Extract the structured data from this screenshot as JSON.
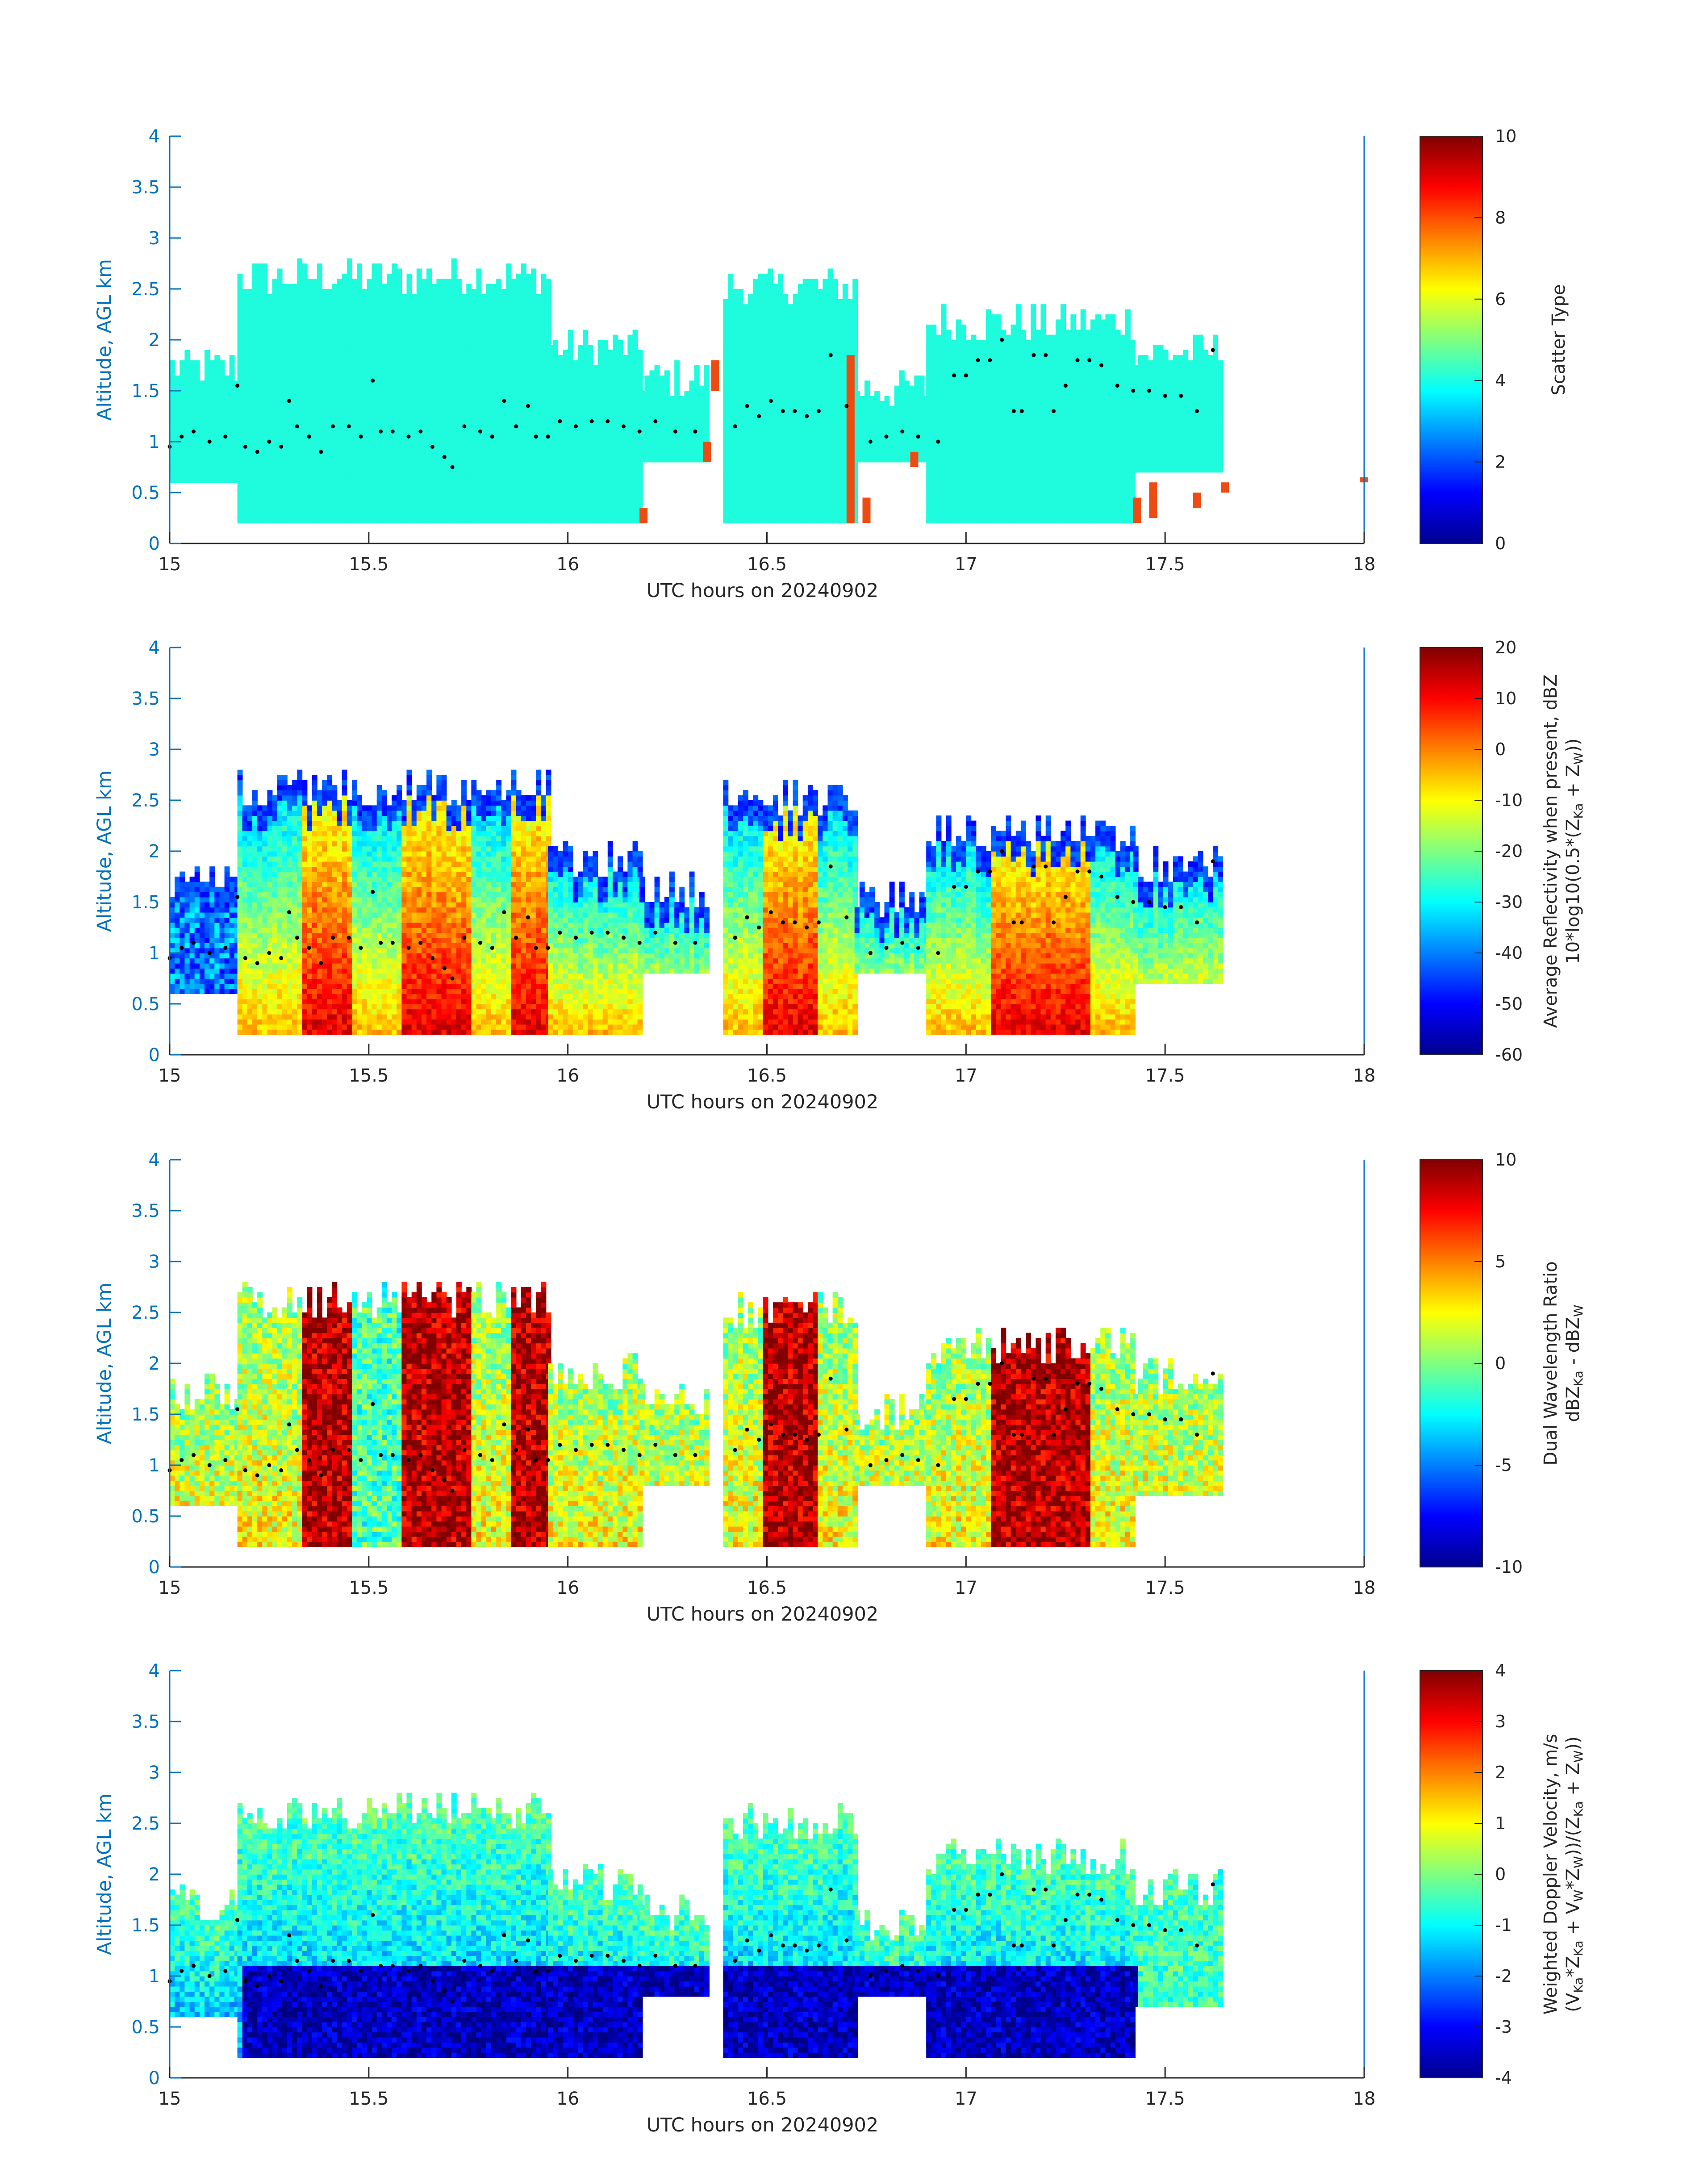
{
  "colors": {
    "axis_y": "#0072BD",
    "axis_x": "#262626",
    "colormap": "jet",
    "altitude_dots": "#000000",
    "scatter_fill": "#1FFBDD",
    "scatter_other": "#EE4B12"
  },
  "chart_data": [
    {
      "type": "heatmap",
      "panel": "scatter-type",
      "ylabel": "Altitude, AGL km",
      "xlabel": "UTC hours on 20240902",
      "xlim": [
        15,
        18
      ],
      "ylim": [
        0,
        4
      ],
      "xticks": [
        "15",
        "15.5",
        "16",
        "16.5",
        "17",
        "17.5",
        "18"
      ],
      "yticks": [
        "0",
        "0.5",
        "1",
        "1.5",
        "2",
        "2.5",
        "3",
        "3.5",
        "4"
      ],
      "colorbar": {
        "label": [
          "Scatter Type"
        ],
        "clim": [
          0,
          10
        ],
        "ticks": [
          "0",
          "2",
          "4",
          "6",
          "8",
          "10"
        ]
      },
      "dominant_value": 4,
      "secondary_value": 8.5
    },
    {
      "type": "heatmap",
      "panel": "average-reflectivity",
      "ylabel": "Altitude, AGL km",
      "xlabel": "UTC hours on 20240902",
      "xlim": [
        15,
        18
      ],
      "ylim": [
        0,
        4
      ],
      "xticks": [
        "15",
        "15.5",
        "16",
        "16.5",
        "17",
        "17.5",
        "18"
      ],
      "yticks": [
        "0",
        "0.5",
        "1",
        "1.5",
        "2",
        "2.5",
        "3",
        "3.5",
        "4"
      ],
      "colorbar": {
        "label": [
          "Average Reflectivity when present, dBZ",
          "10*log10(0.5*(Z",
          "Ka",
          " + Z",
          "W",
          "))"
        ],
        "clim": [
          -60,
          20
        ],
        "ticks": [
          "-60",
          "-50",
          "-40",
          "-30",
          "-20",
          "-10",
          "0",
          "10",
          "20"
        ]
      }
    },
    {
      "type": "heatmap",
      "panel": "dual-wavelength-ratio",
      "ylabel": "Altitude, AGL km",
      "xlabel": "UTC hours on 20240902",
      "xlim": [
        15,
        18
      ],
      "ylim": [
        0,
        4
      ],
      "xticks": [
        "15",
        "15.5",
        "16",
        "16.5",
        "17",
        "17.5",
        "18"
      ],
      "yticks": [
        "0",
        "0.5",
        "1",
        "1.5",
        "2",
        "2.5",
        "3",
        "3.5",
        "4"
      ],
      "colorbar": {
        "label": [
          "Dual Wavelength Ratio",
          "dBZ",
          "Ka",
          " - dBZ",
          "W"
        ],
        "clim": [
          -10,
          10
        ],
        "ticks": [
          "-10",
          "-5",
          "0",
          "5",
          "10"
        ]
      }
    },
    {
      "type": "heatmap",
      "panel": "weighted-doppler-velocity",
      "ylabel": "Altitude, AGL km",
      "xlabel": "UTC hours on 20240902",
      "xlim": [
        15,
        18
      ],
      "ylim": [
        0,
        4
      ],
      "xticks": [
        "15",
        "15.5",
        "16",
        "16.5",
        "17",
        "17.5",
        "18"
      ],
      "yticks": [
        "0",
        "0.5",
        "1",
        "1.5",
        "2",
        "2.5",
        "3",
        "3.5",
        "4"
      ],
      "colorbar": {
        "label": [
          "Weighted Doppler Velocity, m/s",
          "(V",
          "Ka",
          "*Z",
          "Ka",
          " + V",
          "W",
          "*Z",
          "W",
          "))/(Z",
          "Ka",
          " + Z",
          "W",
          "))"
        ],
        "clim": [
          -4,
          4
        ],
        "ticks": [
          "-4",
          "-3",
          "-2",
          "-1",
          "0",
          "1",
          "2",
          "3",
          "4"
        ]
      }
    }
  ],
  "echo_regions": [
    {
      "x0": 15.0,
      "x1": 15.17,
      "bottom": 0.6,
      "top": 1.7
    },
    {
      "x0": 15.17,
      "x1": 15.95,
      "bottom": 0.2,
      "top": 2.6
    },
    {
      "x0": 15.95,
      "x1": 16.18,
      "bottom": 0.2,
      "top": 1.9
    },
    {
      "x0": 16.18,
      "x1": 16.35,
      "bottom": 0.8,
      "top": 1.6
    },
    {
      "x0": 16.39,
      "x1": 16.72,
      "bottom": 0.2,
      "top": 2.5
    },
    {
      "x0": 16.72,
      "x1": 16.9,
      "bottom": 0.8,
      "top": 1.5
    },
    {
      "x0": 16.9,
      "x1": 17.42,
      "bottom": 0.2,
      "top": 2.15
    },
    {
      "x0": 17.42,
      "x1": 17.64,
      "bottom": 0.7,
      "top": 1.85
    }
  ],
  "altitude_dots": [
    [
      15.0,
      0.95
    ],
    [
      15.03,
      1.05
    ],
    [
      15.06,
      1.1
    ],
    [
      15.1,
      1.0
    ],
    [
      15.14,
      1.05
    ],
    [
      15.17,
      1.55
    ],
    [
      15.19,
      0.95
    ],
    [
      15.22,
      0.9
    ],
    [
      15.25,
      1.0
    ],
    [
      15.28,
      0.95
    ],
    [
      15.3,
      1.4
    ],
    [
      15.32,
      1.15
    ],
    [
      15.35,
      1.05
    ],
    [
      15.38,
      0.9
    ],
    [
      15.41,
      1.15
    ],
    [
      15.45,
      1.15
    ],
    [
      15.48,
      1.05
    ],
    [
      15.51,
      1.6
    ],
    [
      15.53,
      1.1
    ],
    [
      15.56,
      1.1
    ],
    [
      15.6,
      1.05
    ],
    [
      15.63,
      1.1
    ],
    [
      15.66,
      0.95
    ],
    [
      15.69,
      0.85
    ],
    [
      15.71,
      0.75
    ],
    [
      15.74,
      1.15
    ],
    [
      15.78,
      1.1
    ],
    [
      15.81,
      1.05
    ],
    [
      15.84,
      1.4
    ],
    [
      15.87,
      1.15
    ],
    [
      15.9,
      1.35
    ],
    [
      15.92,
      1.05
    ],
    [
      15.95,
      1.05
    ],
    [
      15.98,
      1.2
    ],
    [
      16.02,
      1.15
    ],
    [
      16.06,
      1.2
    ],
    [
      16.1,
      1.2
    ],
    [
      16.14,
      1.15
    ],
    [
      16.18,
      1.1
    ],
    [
      16.22,
      1.2
    ],
    [
      16.27,
      1.1
    ],
    [
      16.32,
      1.1
    ],
    [
      16.42,
      1.15
    ],
    [
      16.45,
      1.35
    ],
    [
      16.48,
      1.25
    ],
    [
      16.51,
      1.4
    ],
    [
      16.54,
      1.3
    ],
    [
      16.57,
      1.3
    ],
    [
      16.6,
      1.25
    ],
    [
      16.63,
      1.3
    ],
    [
      16.66,
      1.85
    ],
    [
      16.7,
      1.35
    ],
    [
      16.76,
      1.0
    ],
    [
      16.8,
      1.05
    ],
    [
      16.84,
      1.1
    ],
    [
      16.88,
      1.05
    ],
    [
      16.93,
      1.0
    ],
    [
      16.97,
      1.65
    ],
    [
      17.0,
      1.65
    ],
    [
      17.03,
      1.8
    ],
    [
      17.06,
      1.8
    ],
    [
      17.09,
      2.0
    ],
    [
      17.12,
      1.3
    ],
    [
      17.14,
      1.3
    ],
    [
      17.17,
      1.85
    ],
    [
      17.2,
      1.85
    ],
    [
      17.22,
      1.3
    ],
    [
      17.25,
      1.55
    ],
    [
      17.28,
      1.8
    ],
    [
      17.31,
      1.8
    ],
    [
      17.34,
      1.75
    ],
    [
      17.38,
      1.55
    ],
    [
      17.42,
      1.5
    ],
    [
      17.46,
      1.5
    ],
    [
      17.5,
      1.45
    ],
    [
      17.54,
      1.45
    ],
    [
      17.58,
      1.3
    ],
    [
      17.62,
      1.9
    ]
  ]
}
